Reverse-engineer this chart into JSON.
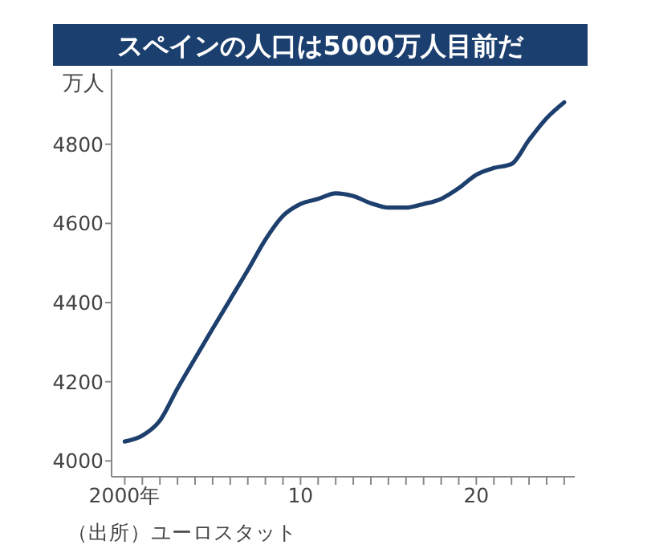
{
  "chart_data": {
    "type": "line",
    "title": "スペインの人口は5000万人目前だ",
    "ylabel": "万人",
    "annotations": [
      "（出所）ユーロスタット"
    ],
    "x": [
      2000,
      2001,
      2002,
      2003,
      2004,
      2005,
      2006,
      2007,
      2008,
      2009,
      2010,
      2011,
      2012,
      2013,
      2014,
      2015,
      2016,
      2017,
      2018,
      2019,
      2020,
      2021,
      2022,
      2023,
      2024,
      2025
    ],
    "series": [
      {
        "color": "#1d3f6e",
        "values": [
          4049,
          4064,
          4102,
          4183,
          4259,
          4334,
          4408,
          4482,
          4559,
          4619,
          4649,
          4662,
          4676,
          4669,
          4651,
          4640,
          4640,
          4649,
          4662,
          4689,
          4723,
          4740,
          4750,
          4811,
          4866,
          4906
        ]
      }
    ],
    "xlim": [
      1999.25,
      2025.6
    ],
    "ylim": [
      3960,
      4990
    ],
    "xticks": [
      {
        "value": 2000,
        "label": "2000年"
      },
      {
        "value": 2001,
        "label": null
      },
      {
        "value": 2002,
        "label": null
      },
      {
        "value": 2003,
        "label": null
      },
      {
        "value": 2004,
        "label": null
      },
      {
        "value": 2005,
        "label": null
      },
      {
        "value": 2006,
        "label": null
      },
      {
        "value": 2007,
        "label": null
      },
      {
        "value": 2008,
        "label": null
      },
      {
        "value": 2009,
        "label": null
      },
      {
        "value": 2010,
        "label": "10"
      },
      {
        "value": 2011,
        "label": null
      },
      {
        "value": 2012,
        "label": null
      },
      {
        "value": 2013,
        "label": null
      },
      {
        "value": 2014,
        "label": null
      },
      {
        "value": 2015,
        "label": null
      },
      {
        "value": 2016,
        "label": null
      },
      {
        "value": 2017,
        "label": null
      },
      {
        "value": 2018,
        "label": null
      },
      {
        "value": 2019,
        "label": null
      },
      {
        "value": 2020,
        "label": "20"
      },
      {
        "value": 2021,
        "label": null
      },
      {
        "value": 2022,
        "label": null
      },
      {
        "value": 2023,
        "label": null
      },
      {
        "value": 2024,
        "label": null
      },
      {
        "value": 2025,
        "label": null
      }
    ],
    "yticks": [
      4000,
      4200,
      4400,
      4600,
      4800
    ],
    "grid": false,
    "marker": "none",
    "line_style": "solid"
  }
}
